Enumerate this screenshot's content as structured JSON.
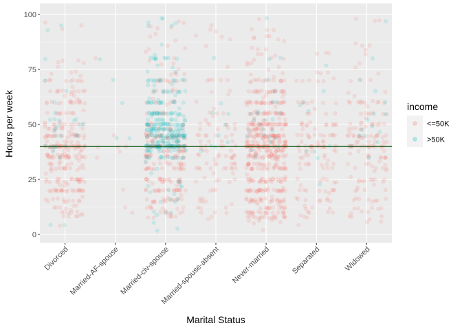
{
  "chart_data": {
    "type": "scatter",
    "jitter": true,
    "xlabel": "Marital Status",
    "ylabel": "Hours per week",
    "categories": [
      "Divorced",
      "Married-AF-spouse",
      "Married-civ-spouse",
      "Married-spouse-absent",
      "Never-married",
      "Separated",
      "Widowed"
    ],
    "ylim": [
      0,
      100
    ],
    "yticks": [
      0,
      25,
      50,
      75,
      100
    ],
    "grid": true,
    "legend": {
      "title": "income",
      "position": "right",
      "entries": [
        {
          "name": "<=50K",
          "color": "#F8766D"
        },
        {
          "name": ">50K",
          "color": "#00BFC4"
        }
      ]
    },
    "reference_line": {
      "y": 40,
      "color": "#1a5c1a"
    },
    "series": [
      {
        "name": "<=50K",
        "color": "#F8766D",
        "density": [
          0.55,
          0.02,
          0.55,
          0.2,
          1.0,
          0.25,
          0.3
        ],
        "common_hours": [
          40,
          50,
          45,
          35,
          30,
          20,
          60,
          25,
          55,
          15,
          10,
          48,
          38,
          32,
          42,
          44,
          36,
          65,
          70,
          24,
          20,
          16,
          12,
          8
        ]
      },
      {
        "name": ">50K",
        "color": "#00BFC4",
        "density": [
          0.06,
          0.01,
          0.6,
          0.02,
          0.05,
          0.02,
          0.03
        ],
        "common_hours": [
          40,
          50,
          45,
          60,
          55,
          48,
          44,
          42,
          38,
          35,
          65,
          70,
          80,
          52,
          47
        ]
      }
    ]
  }
}
